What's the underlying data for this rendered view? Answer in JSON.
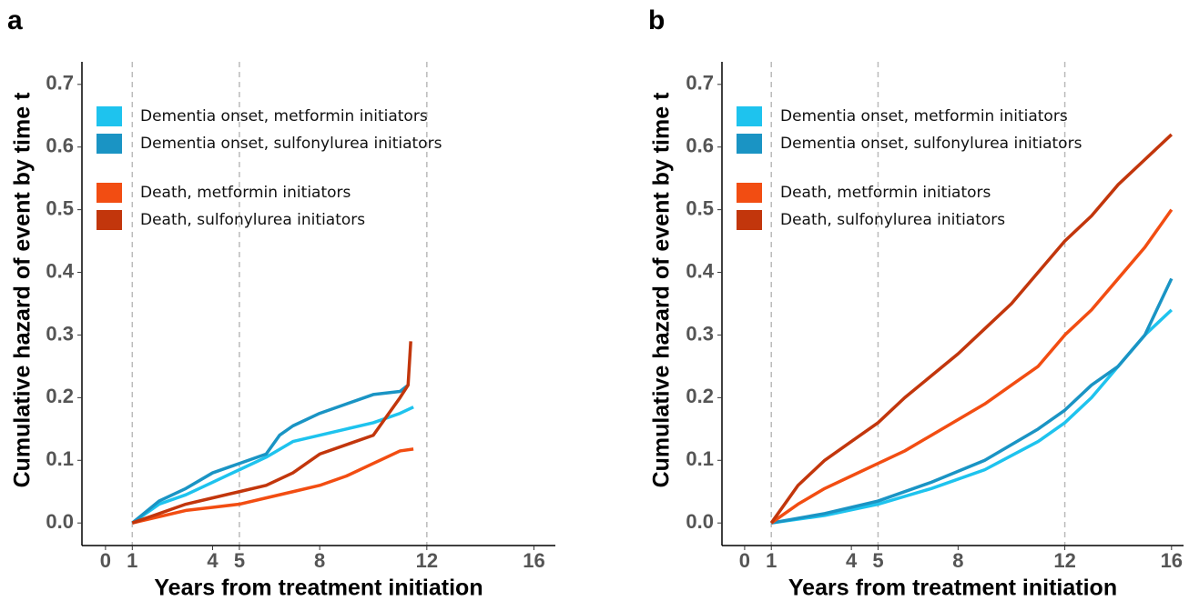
{
  "chart_data": [
    {
      "type": "line",
      "label": "a",
      "xlabel": "Years from treatment initiation",
      "ylabel": "Cumulative hazard of event by time t",
      "xlim": [
        -0.88,
        16.8
      ],
      "xticks": [
        0,
        1,
        4,
        5,
        8,
        12,
        16
      ],
      "ylim": [
        -0.036,
        0.736
      ],
      "yticks": [
        {
          "value": 0,
          "label": "0.0"
        },
        0.1,
        0.2,
        0.3,
        0.4,
        0.5,
        0.6,
        0.7
      ],
      "vlines": [
        1,
        5,
        12
      ],
      "legend": "top-left",
      "series": [
        {
          "name": "Dementia onset, metformin initiators",
          "color": "#1ec3ee",
          "x": [
            1,
            2,
            3,
            4,
            5,
            6,
            7,
            8,
            9,
            10,
            11,
            11.5
          ],
          "values": [
            0,
            0.03,
            0.045,
            0.065,
            0.085,
            0.105,
            0.13,
            0.14,
            0.15,
            0.16,
            0.175,
            0.185
          ]
        },
        {
          "name": "Dementia onset, sulfonylurea initiators",
          "color": "#1a94c4",
          "x": [
            1,
            2,
            3,
            4,
            5,
            6,
            6.5,
            7,
            8,
            9,
            10,
            11,
            11.3
          ],
          "values": [
            0,
            0.035,
            0.055,
            0.08,
            0.095,
            0.11,
            0.14,
            0.155,
            0.175,
            0.19,
            0.205,
            0.21,
            0.22
          ]
        },
        {
          "name": "Death, metformin initiators",
          "color": "#f24d12",
          "x": [
            1,
            2,
            3,
            4,
            5,
            6,
            7,
            8,
            9,
            10,
            11,
            11.5
          ],
          "values": [
            0,
            0.01,
            0.02,
            0.025,
            0.03,
            0.04,
            0.05,
            0.06,
            0.075,
            0.095,
            0.115,
            0.118
          ]
        },
        {
          "name": "Death, sulfonylurea initiators",
          "color": "#c2360c",
          "x": [
            1,
            2,
            3,
            4,
            5,
            6,
            7,
            8,
            9,
            10,
            10.5,
            11,
            11.3,
            11.4
          ],
          "values": [
            0,
            0.015,
            0.03,
            0.04,
            0.05,
            0.06,
            0.08,
            0.11,
            0.125,
            0.14,
            0.17,
            0.2,
            0.22,
            0.29
          ]
        }
      ]
    },
    {
      "type": "line",
      "label": "b",
      "xlabel": "Years from treatment initiation",
      "ylabel": "Cumulative hazard of event by time t",
      "xlim": [
        -0.85,
        16.45
      ],
      "xticks": [
        0,
        1,
        4,
        5,
        8,
        12,
        16
      ],
      "ylim": [
        -0.036,
        0.736
      ],
      "yticks": [
        {
          "value": 0,
          "label": "0.0"
        },
        0.1,
        0.2,
        0.3,
        0.4,
        0.5,
        0.6,
        0.7
      ],
      "vlines": [
        1,
        5,
        12
      ],
      "legend": "top-left",
      "series": [
        {
          "name": "Dementia onset, metformin initiators",
          "color": "#1ec3ee",
          "x": [
            1,
            3,
            5,
            7,
            9,
            11,
            12,
            13,
            14,
            15,
            16
          ],
          "values": [
            0,
            0.012,
            0.03,
            0.055,
            0.085,
            0.13,
            0.16,
            0.2,
            0.25,
            0.3,
            0.34
          ]
        },
        {
          "name": "Dementia onset, sulfonylurea initiators",
          "color": "#1a94c4",
          "x": [
            1,
            3,
            5,
            7,
            9,
            11,
            12,
            13,
            14,
            15,
            16
          ],
          "values": [
            0,
            0.015,
            0.035,
            0.065,
            0.1,
            0.15,
            0.18,
            0.22,
            0.25,
            0.3,
            0.39
          ]
        },
        {
          "name": "Death, metformin initiators",
          "color": "#f24d12",
          "x": [
            1,
            2,
            3,
            4,
            5,
            6,
            7,
            8,
            9,
            10,
            11,
            12,
            13,
            14,
            15,
            16
          ],
          "values": [
            0,
            0.03,
            0.055,
            0.075,
            0.095,
            0.115,
            0.14,
            0.165,
            0.19,
            0.22,
            0.25,
            0.3,
            0.34,
            0.39,
            0.44,
            0.5
          ]
        },
        {
          "name": "Death, sulfonylurea initiators",
          "color": "#c2360c",
          "x": [
            1,
            2,
            3,
            4,
            5,
            6,
            7,
            8,
            9,
            10,
            11,
            12,
            13,
            14,
            15,
            16
          ],
          "values": [
            0,
            0.06,
            0.1,
            0.13,
            0.16,
            0.2,
            0.235,
            0.27,
            0.31,
            0.35,
            0.4,
            0.45,
            0.49,
            0.54,
            0.58,
            0.62
          ]
        }
      ]
    }
  ]
}
